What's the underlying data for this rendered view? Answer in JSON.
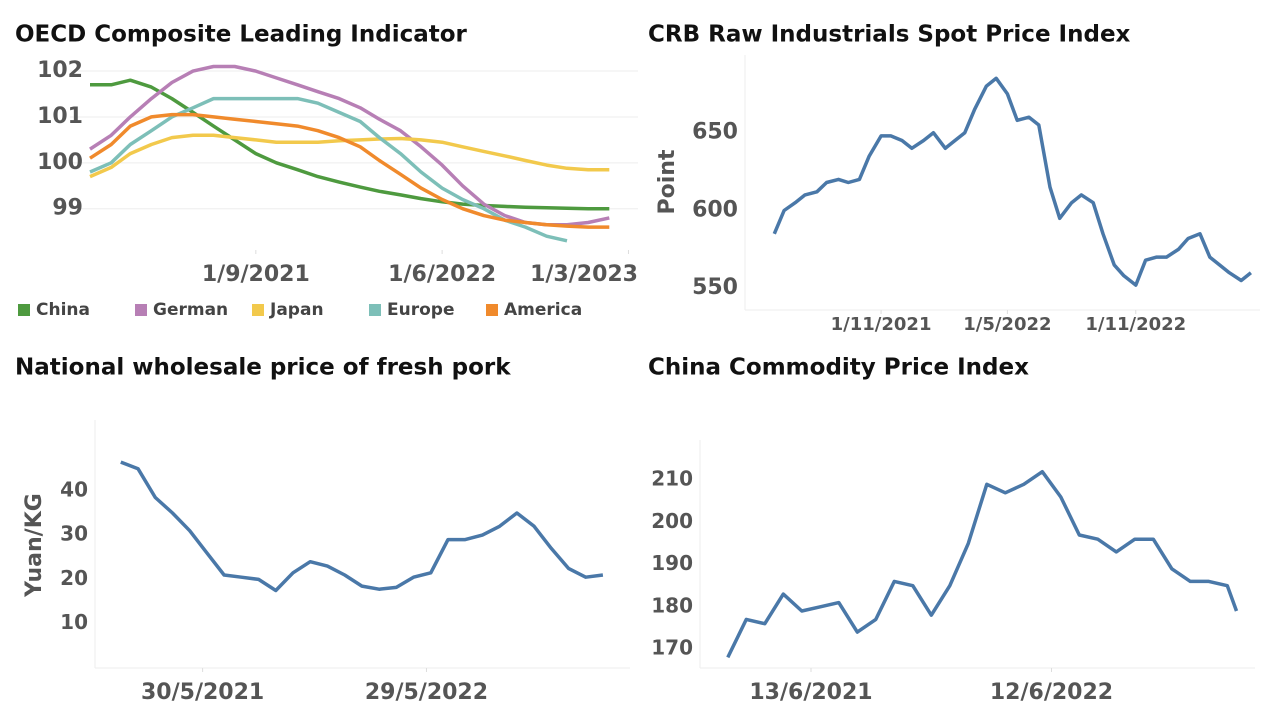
{
  "chart_data": [
    {
      "type": "line",
      "title": "OECD Composite Leading Indicator",
      "x": [
        "1/1/2021",
        "1/2/2021",
        "1/3/2021",
        "1/4/2021",
        "1/5/2021",
        "1/6/2021",
        "1/7/2021",
        "1/8/2021",
        "1/9/2021",
        "1/10/2021",
        "1/11/2021",
        "1/12/2021",
        "1/1/2022",
        "1/2/2022",
        "1/3/2022",
        "1/4/2022",
        "1/5/2022",
        "1/6/2022",
        "1/7/2022",
        "1/8/2022",
        "1/9/2022",
        "1/10/2022",
        "1/11/2022",
        "1/12/2022",
        "1/1/2023",
        "1/2/2023"
      ],
      "series": [
        {
          "name": "China",
          "color": "#4e9a3f",
          "values": [
            101.7,
            101.7,
            101.8,
            101.65,
            101.4,
            101.1,
            100.8,
            100.5,
            100.2,
            100.0,
            99.85,
            99.7,
            99.58,
            99.47,
            99.38,
            99.3,
            99.22,
            99.15,
            99.1,
            99.07,
            99.05,
            99.03,
            99.02,
            99.01,
            99.0,
            99.0
          ]
        },
        {
          "name": "German",
          "color": "#b77fb5",
          "values": [
            100.3,
            100.6,
            101.0,
            101.4,
            101.75,
            102.0,
            102.1,
            102.1,
            102.0,
            101.85,
            101.7,
            101.55,
            101.4,
            101.2,
            100.95,
            100.7,
            100.35,
            99.95,
            99.5,
            99.1,
            98.85,
            98.7,
            98.65,
            98.65,
            98.7,
            98.8
          ]
        },
        {
          "name": "Japan",
          "color": "#f2c94c",
          "values": [
            99.7,
            99.9,
            100.2,
            100.4,
            100.55,
            100.6,
            100.6,
            100.55,
            100.5,
            100.45,
            100.45,
            100.45,
            100.48,
            100.5,
            100.52,
            100.53,
            100.5,
            100.45,
            100.35,
            100.25,
            100.15,
            100.05,
            99.95,
            99.88,
            99.85,
            99.85
          ]
        },
        {
          "name": "Europe",
          "color": "#7dbfb8",
          "values": [
            99.8,
            100.0,
            100.4,
            100.7,
            101.0,
            101.2,
            101.4,
            101.4,
            101.4,
            101.4,
            101.4,
            101.3,
            101.1,
            100.9,
            100.55,
            100.2,
            99.8,
            99.45,
            99.2,
            99.0,
            98.75,
            98.6,
            98.4,
            98.3,
            null,
            null
          ]
        },
        {
          "name": "America",
          "color": "#f08a2c",
          "values": [
            100.1,
            100.4,
            100.8,
            101.0,
            101.05,
            101.05,
            101.0,
            100.95,
            100.9,
            100.85,
            100.8,
            100.7,
            100.55,
            100.35,
            100.05,
            99.75,
            99.45,
            99.2,
            99.0,
            98.85,
            98.75,
            98.7,
            98.65,
            98.62,
            98.6,
            98.6
          ]
        }
      ],
      "xlim": [
        "1/1/2021",
        "15/3/2023"
      ],
      "xticks": [
        "1/9/2021",
        "1/6/2022",
        "1/3/2023"
      ],
      "ylim": [
        98.1,
        102.35
      ],
      "yticks": [
        99,
        100,
        101,
        102
      ],
      "grid": true,
      "legend": "bottom"
    },
    {
      "type": "line",
      "title": "CRB Raw Industrials Spot Price Index",
      "y_label": "Point",
      "color": "#4a78a8",
      "x": [
        "1/6/2021",
        "15/6/2021",
        "1/7/2021",
        "15/7/2021",
        "1/8/2021",
        "15/8/2021",
        "1/9/2021",
        "15/9/2021",
        "1/10/2021",
        "15/10/2021",
        "1/11/2021",
        "15/11/2021",
        "1/12/2021",
        "15/12/2021",
        "1/1/2022",
        "15/1/2022",
        "1/2/2022",
        "15/2/2022",
        "1/3/2022",
        "15/3/2022",
        "1/4/2022",
        "15/4/2022",
        "1/5/2022",
        "15/5/2022",
        "1/6/2022",
        "15/6/2022",
        "1/7/2022",
        "15/7/2022",
        "1/8/2022",
        "15/8/2022",
        "1/9/2022",
        "15/9/2022",
        "1/10/2022",
        "15/10/2022",
        "1/11/2022",
        "15/11/2022",
        "1/12/2022",
        "15/12/2022",
        "1/1/2023",
        "15/1/2023",
        "1/2/2023",
        "15/2/2023",
        "1/3/2023",
        "15/3/2023",
        "1/4/2023",
        "15/4/2023"
      ],
      "values": [
        585,
        600,
        605,
        610,
        612,
        618,
        620,
        618,
        620,
        635,
        648,
        648,
        645,
        640,
        645,
        650,
        640,
        645,
        650,
        665,
        680,
        685,
        675,
        658,
        660,
        655,
        615,
        595,
        605,
        610,
        605,
        585,
        565,
        558,
        552,
        568,
        570,
        570,
        575,
        582,
        585,
        570,
        565,
        560,
        555,
        560
      ],
      "xlim": [
        "20/4/2021",
        "28/4/2023"
      ],
      "xticks": [
        "1/11/2021",
        "1/5/2022",
        "1/11/2022"
      ],
      "ylim": [
        536,
        700
      ],
      "yticks": [
        550,
        600,
        650
      ]
    },
    {
      "type": "line",
      "title": "National wholesale price of fresh pork",
      "y_label": "Yuan/KG",
      "color": "#4a78a8",
      "x": [
        "17/1/2021",
        "14/2/2021",
        "14/3/2021",
        "11/4/2021",
        "9/5/2021",
        "6/6/2021",
        "4/7/2021",
        "1/8/2021",
        "29/8/2021",
        "26/9/2021",
        "24/10/2021",
        "21/11/2021",
        "19/12/2021",
        "16/1/2022",
        "13/2/2022",
        "13/3/2022",
        "10/4/2022",
        "8/5/2022",
        "5/6/2022",
        "3/7/2022",
        "31/7/2022",
        "28/8/2022",
        "25/9/2022",
        "23/10/2022",
        "20/11/2022",
        "18/12/2022",
        "15/1/2023",
        "12/2/2023",
        "12/3/2023"
      ],
      "values": [
        46.5,
        45,
        38.5,
        35,
        31,
        26,
        21,
        20.5,
        20,
        17.5,
        21.5,
        24,
        23,
        21,
        18.5,
        17.8,
        18.2,
        20.5,
        21.5,
        29,
        29,
        30,
        32,
        35,
        32,
        27,
        22.5,
        20.5,
        21
      ],
      "xlim": [
        "6/12/2020",
        "25/4/2023"
      ],
      "xticks": [
        "30/5/2021",
        "29/5/2022"
      ],
      "ylim": [
        0,
        56
      ],
      "yticks": [
        10,
        20,
        30,
        40
      ]
    },
    {
      "type": "line",
      "title": "China Commodity Price Index",
      "color": "#4a78a8",
      "x": [
        "7/2/2021",
        "7/3/2021",
        "4/4/2021",
        "2/5/2021",
        "30/5/2021",
        "27/6/2021",
        "25/7/2021",
        "22/8/2021",
        "19/9/2021",
        "17/10/2021",
        "14/11/2021",
        "12/12/2021",
        "9/1/2022",
        "6/2/2022",
        "6/3/2022",
        "3/4/2022",
        "1/5/2022",
        "29/5/2022",
        "26/6/2022",
        "24/7/2022",
        "21/8/2022",
        "18/9/2022",
        "16/10/2022",
        "13/11/2022",
        "11/12/2022",
        "8/1/2023",
        "5/2/2023",
        "5/3/2023",
        "19/3/2023"
      ],
      "values": [
        168,
        177,
        176,
        183,
        179,
        180,
        181,
        174,
        177,
        186,
        185,
        178,
        185,
        195,
        209,
        207,
        209,
        212,
        206,
        197,
        196,
        193,
        196,
        196,
        189,
        186,
        186,
        185,
        179
      ],
      "xlim": [
        "27/12/2020",
        "16/4/2023"
      ],
      "xticks": [
        "13/6/2021",
        "12/6/2022"
      ],
      "ylim": [
        165.5,
        219.5
      ],
      "yticks": [
        170,
        180,
        190,
        200,
        210
      ]
    }
  ]
}
